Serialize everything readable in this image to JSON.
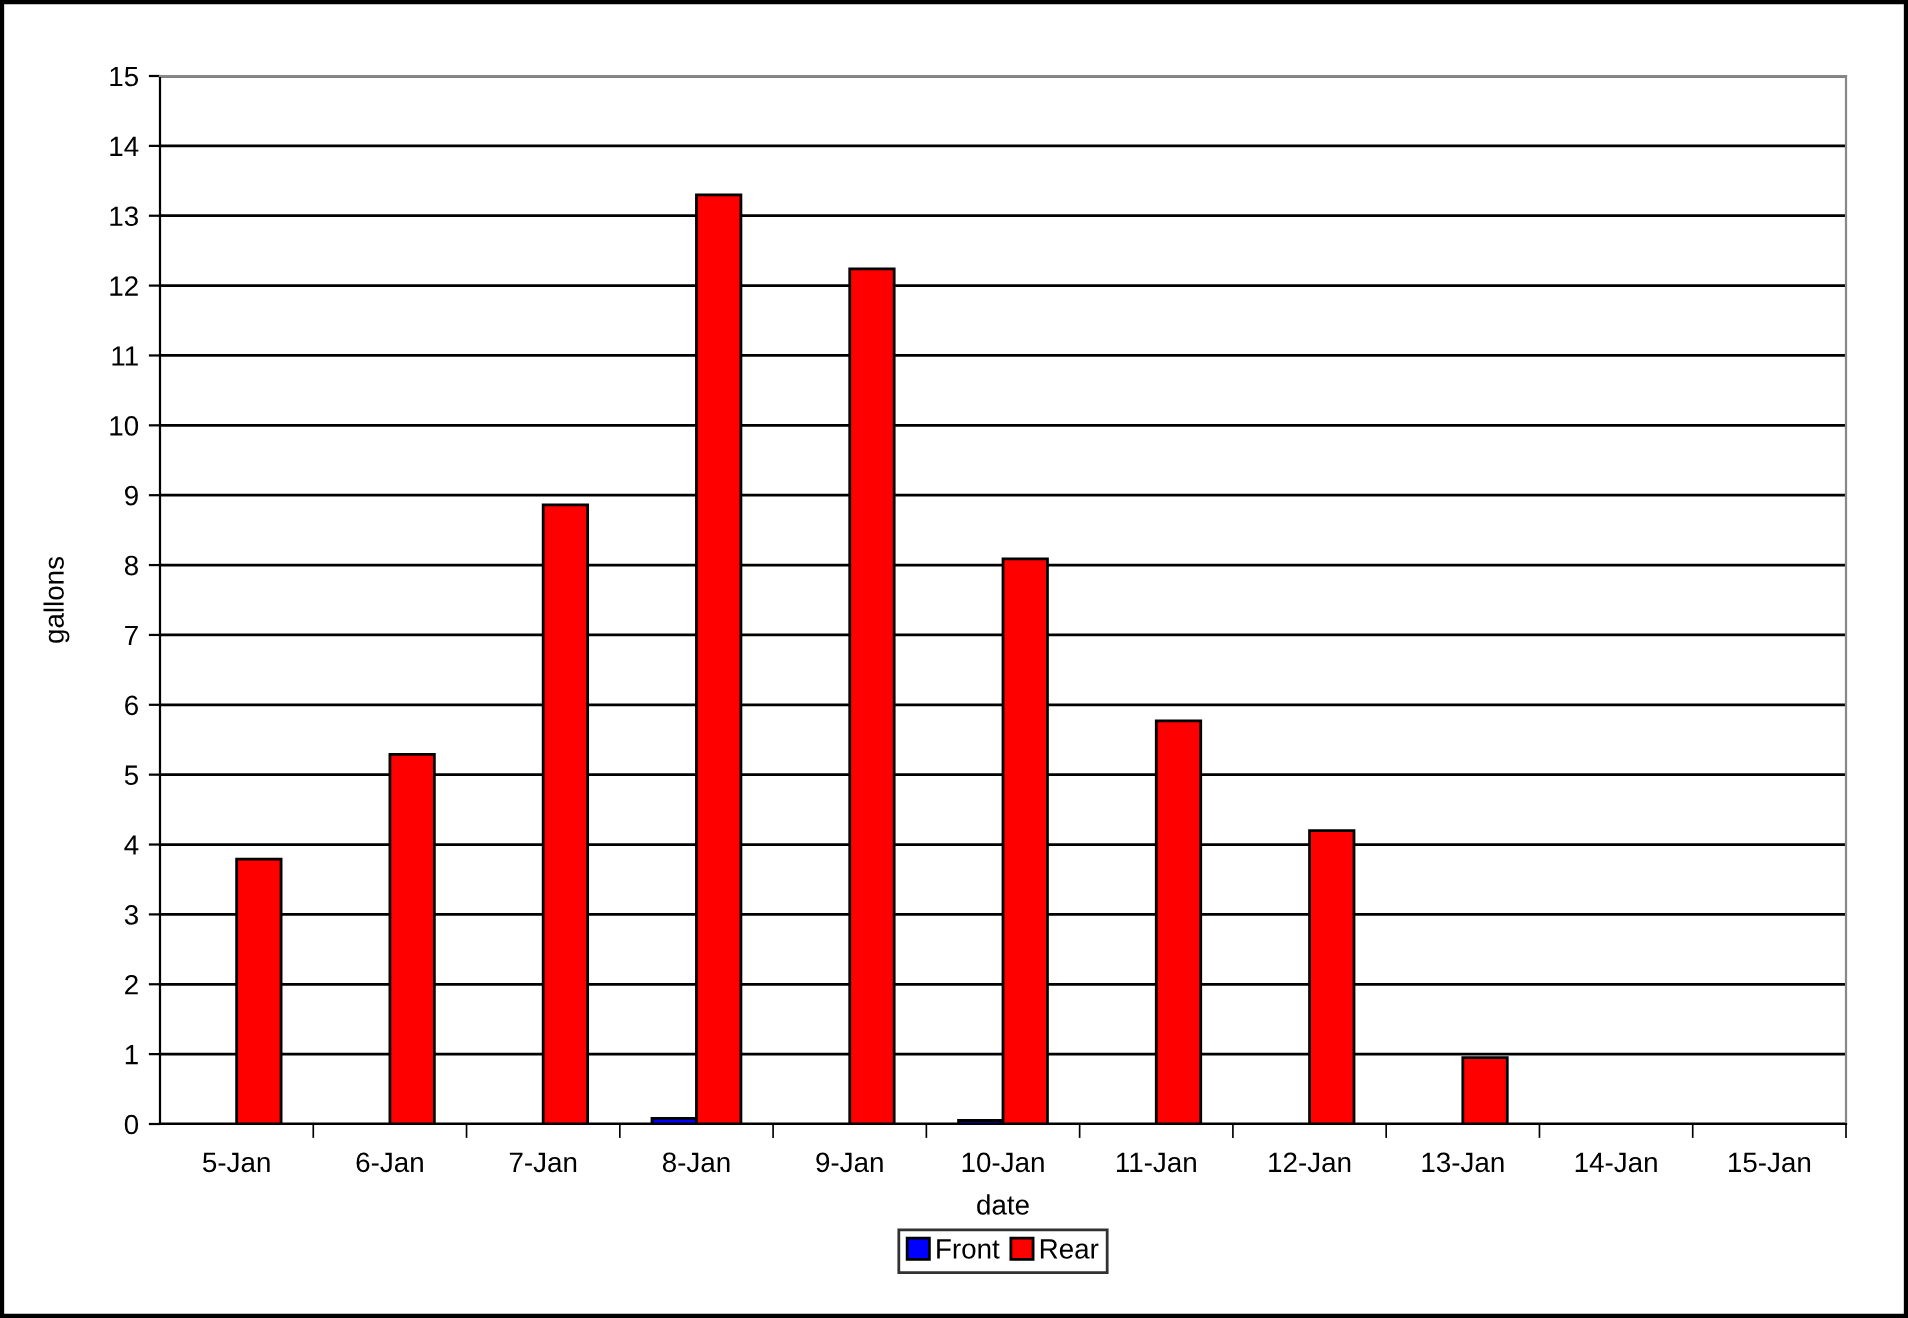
{
  "chart_data": {
    "type": "bar",
    "xlabel": "date",
    "ylabel": "gallons",
    "categories": [
      "5-Jan",
      "6-Jan",
      "7-Jan",
      "8-Jan",
      "9-Jan",
      "10-Jan",
      "11-Jan",
      "12-Jan",
      "13-Jan",
      "14-Jan",
      "15-Jan"
    ],
    "series": [
      {
        "name": "Front",
        "color": "#0000ff",
        "values": [
          0,
          0,
          0,
          0.08,
          0,
          0.05,
          0,
          0,
          0,
          0,
          0
        ]
      },
      {
        "name": "Rear",
        "color": "#ff0000",
        "values": [
          3.79,
          5.29,
          8.86,
          13.3,
          12.24,
          8.09,
          5.77,
          4.2,
          0.95,
          0,
          0
        ]
      }
    ],
    "ylim": [
      0,
      15
    ],
    "yticks": [
      0,
      1,
      2,
      3,
      4,
      5,
      6,
      7,
      8,
      9,
      10,
      11,
      12,
      13,
      14,
      15
    ],
    "grid": "y",
    "legend": "bottom"
  }
}
